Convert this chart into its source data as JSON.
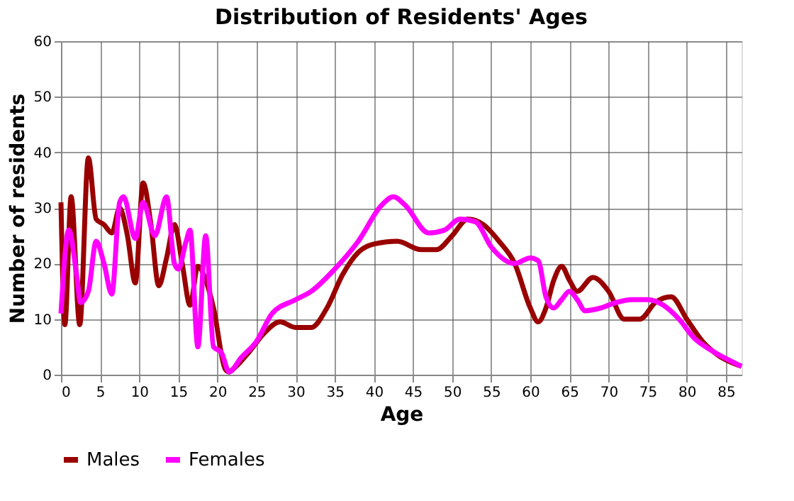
{
  "chart_data": {
    "type": "line",
    "title": "Distribution of Residents' Ages",
    "xlabel": "Age",
    "ylabel": "Number of residents",
    "xlim": [
      0,
      87
    ],
    "xticks": [
      0,
      5,
      10,
      15,
      20,
      25,
      30,
      35,
      40,
      45,
      50,
      55,
      60,
      65,
      70,
      75,
      80,
      85
    ],
    "ylim": [
      0,
      60
    ],
    "yticks": [
      0,
      10,
      20,
      30,
      40,
      50,
      60
    ],
    "grid": true,
    "legend": "bottom",
    "marker": "none",
    "line_style": "solid",
    "series": [
      {
        "name": "Males",
        "color": "#990000",
        "x": [
          0,
          0.5,
          1.3,
          2.4,
          3.5,
          4.5,
          5.5,
          6.5,
          7.5,
          8.5,
          9.5,
          10.5,
          11.5,
          12.5,
          13.5,
          14.5,
          15.5,
          16.5,
          17.5,
          18.5,
          19.5,
          21,
          21.5,
          22,
          24,
          26,
          28,
          30,
          32,
          34,
          36,
          38,
          40,
          43,
          46,
          48,
          50,
          52,
          54,
          56,
          58,
          60,
          61,
          62,
          63,
          64,
          65,
          66,
          68,
          70,
          72,
          74,
          76,
          78,
          80,
          82,
          84,
          87
        ],
        "values": [
          31,
          9,
          32,
          9,
          39,
          28,
          27,
          25.5,
          30,
          25,
          16.5,
          34.5,
          27,
          16,
          21,
          27,
          20,
          12.5,
          19.5,
          17,
          12,
          1,
          0.5,
          1,
          4,
          7.5,
          9.5,
          8.5,
          8.5,
          12,
          18,
          22,
          23.5,
          24,
          22.5,
          22.5,
          25,
          28,
          27,
          24,
          20,
          12,
          9.5,
          12,
          17,
          19.5,
          17,
          15,
          17.5,
          15,
          10,
          10,
          13,
          14,
          10,
          6,
          3.5,
          1.5
        ]
      },
      {
        "name": "Females",
        "color": "#ff00ff",
        "x": [
          0,
          1,
          2,
          2.5,
          3.5,
          4.5,
          5.5,
          6.5,
          7.5,
          8,
          9.5,
          10.5,
          12,
          13.5,
          14.5,
          15,
          16,
          16.5,
          17.5,
          18.5,
          19.5,
          20.5,
          21.5,
          23,
          25,
          27,
          30,
          32,
          35,
          38,
          41,
          42.5,
          44,
          47,
          49,
          51,
          53,
          55,
          58,
          60,
          61,
          62,
          63,
          64,
          65,
          66,
          67,
          69,
          71,
          73,
          75,
          77,
          79,
          81,
          83,
          87
        ],
        "values": [
          11,
          26,
          18,
          13,
          15,
          24,
          20,
          14.5,
          31,
          32,
          24.5,
          31,
          25,
          32,
          20,
          19,
          24,
          26,
          5,
          25,
          5,
          4,
          0.5,
          3,
          6,
          11,
          13.5,
          15,
          19,
          24,
          30.5,
          32,
          30.5,
          25.5,
          26,
          28,
          27.5,
          23,
          20,
          21,
          20.5,
          14,
          12,
          13.5,
          15,
          13.5,
          11.5,
          12,
          13,
          13.5,
          13.5,
          12.5,
          10,
          6.5,
          4.5,
          1.5
        ]
      }
    ]
  }
}
